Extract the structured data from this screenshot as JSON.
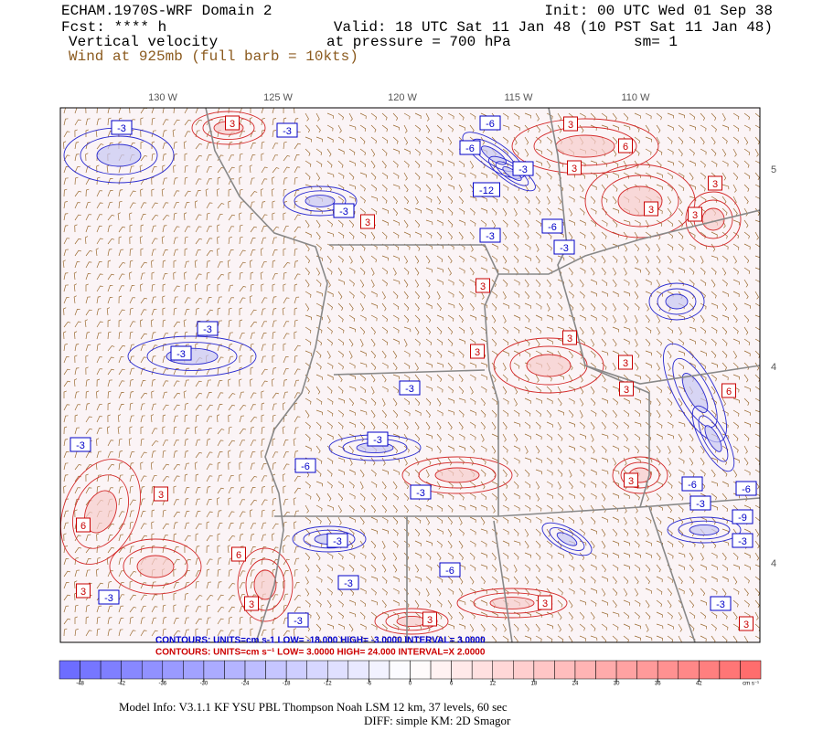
{
  "header": {
    "title": "ECHAM.1970S-WRF Domain 2",
    "forecast": "Fcst: **** h",
    "field": "Vertical velocity",
    "wind": "Wind at 925mb (full barb = 10kts)",
    "init": "Init: 00 UTC Wed 01 Sep 38",
    "valid": "Valid: 18 UTC Sat 11 Jan 48 (10 PST Sat 11 Jan 48)",
    "pressure": "at pressure =  700 hPa",
    "smoothing": "sm= 1"
  },
  "map": {
    "longitude_labels": [
      "130 W",
      "125 W",
      "120 W",
      "115 W",
      "110 W"
    ],
    "latitude_labels": [
      "5",
      "4",
      "4"
    ],
    "contour_labels": [
      "-3",
      "3",
      "-3",
      "-6",
      "-6",
      "-3",
      "3",
      "-12",
      "6",
      "3",
      "3",
      "3",
      "3",
      "-3",
      "3",
      "-6",
      "-3",
      "-3",
      "3",
      "-3",
      "-3",
      "3",
      "3",
      "3",
      "-3",
      "3",
      "6",
      "-3",
      "-3",
      "-6",
      "3",
      "-3",
      "3",
      "-6",
      "-6",
      "-3",
      "6",
      "-3",
      "-9",
      "-3",
      "6",
      "-6",
      "-3",
      "3",
      "-3",
      "3",
      "3",
      "-3",
      "-3",
      "3",
      "3"
    ]
  },
  "contour_info": {
    "negative": "CONTOURS:  UNITS=cm s-1  LOW= -18.000     HIGH= -3.0000     INTERVAL= 3.0000",
    "positive": "CONTOURS:  UNITS=cm s⁻¹  LOW=  3.0000     HIGH=  24.000     INTERVAL=X  2.0000"
  },
  "colorbar": {
    "lim": [
      -51,
      51
    ],
    "ticks": [
      -48,
      -42,
      -36,
      -30,
      -24,
      -18,
      -12,
      -6,
      0,
      6,
      12,
      18,
      24,
      30,
      36,
      42
    ],
    "unit": "cm s⁻¹"
  },
  "footer": {
    "model_info": "Model Info: V3.1.1    KF    YSU PBL   Thompson    Noah LSM   12 km,    37 levels,    60 sec",
    "diff": "DIFF: simple KM: 2D Smagor"
  }
}
